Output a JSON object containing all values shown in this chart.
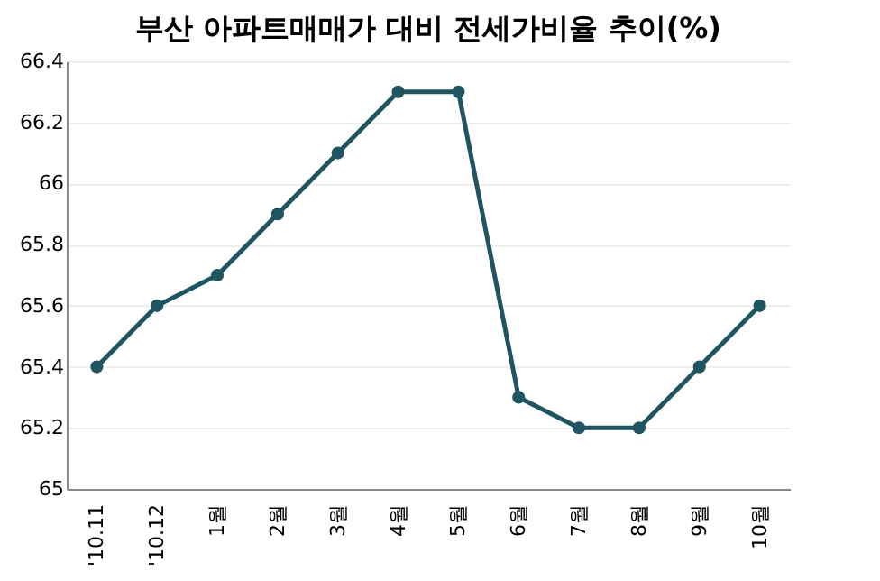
{
  "chart_data": {
    "type": "line",
    "title": "부산 아파트매매가 대비 전세가비율 추이(%)",
    "categories": [
      "'10.11",
      "'10.12",
      "1월",
      "2월",
      "3월",
      "4월",
      "5월",
      "6월",
      "7월",
      "8월",
      "9월",
      "10월"
    ],
    "series": [
      {
        "color": "#1f5461",
        "values": [
          65.4,
          65.6,
          65.7,
          65.9,
          66.1,
          66.3,
          66.3,
          65.3,
          65.2,
          65.2,
          65.4,
          65.6
        ]
      }
    ],
    "ylim": [
      65,
      66.4
    ],
    "yticks": [
      65,
      65.2,
      65.4,
      65.6,
      65.8,
      66,
      66.2,
      66.4
    ],
    "grid": "y",
    "marker": "circle",
    "line_style": "solid"
  }
}
